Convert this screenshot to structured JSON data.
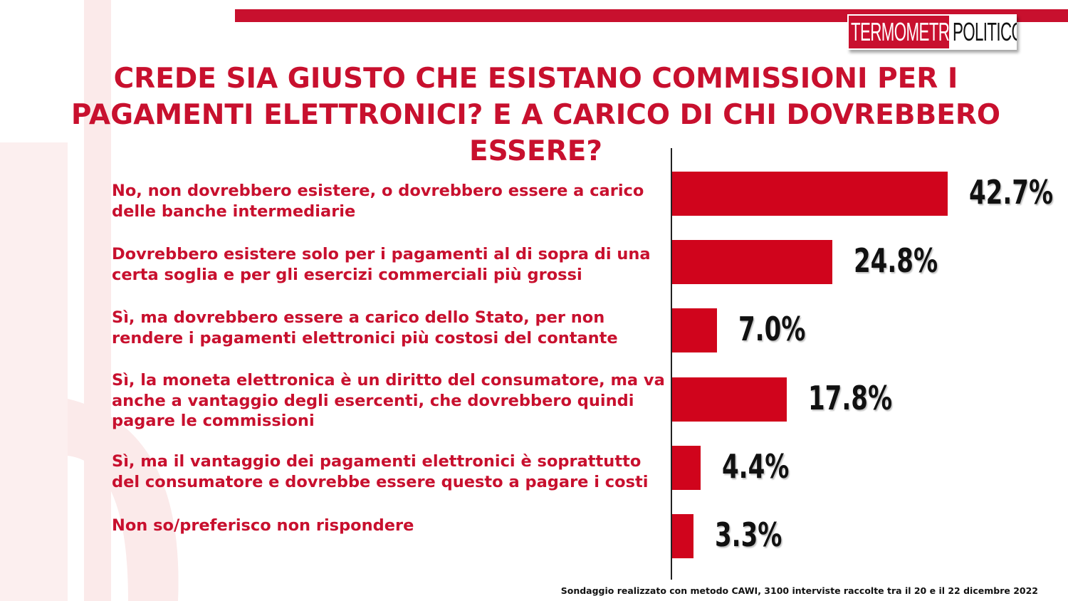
{
  "brand": {
    "logo_part_a": "TERMOMETRO",
    "logo_part_b": "POLITICO",
    "accent_color": "#c8102e",
    "bar_color": "#d0041c"
  },
  "title": "CREDE SIA GIUSTO CHE ESISTANO COMMISSIONI PER I PAGAMENTI ELETTRONICI? E A CARICO DI CHI DOVREBBERO ESSERE?",
  "footnote": "Sondaggio realizzato con metodo CAWI, 3100 interviste raccolte tra il 20 e il 22 dicembre 2022",
  "chart_data": {
    "type": "bar",
    "orientation": "horizontal",
    "title": "CREDE SIA GIUSTO CHE ESISTANO COMMISSIONI PER I PAGAMENTI ELETTRONICI? E A CARICO DI CHI DOVREBBERO ESSERE?",
    "categories": [
      "No, non dovrebbero esistere, o dovrebbero essere a carico delle banche intermediarie",
      "Dovrebbero esistere solo per i pagamenti al di sopra di una certa soglia e per gli esercizi commerciali più grossi",
      "Sì, ma dovrebbero essere a carico dello Stato, per non rendere i pagamenti elettronici più costosi del contante",
      "Sì, la moneta elettronica è un diritto del consumatore, ma va anche a vantaggio degli esercenti, che dovrebbero quindi pagare le commissioni",
      "Sì, ma il vantaggio dei pagamenti elettronici è soprattutto del consumatore e dovrebbe essere questo a pagare i costi",
      "Non so/preferisco non rispondere"
    ],
    "values": [
      42.7,
      24.8,
      7.0,
      17.8,
      4.4,
      3.3
    ],
    "value_labels": [
      "42.7%",
      "24.8%",
      "7.0%",
      "17.8%",
      "4.4%",
      "3.3%"
    ],
    "unit": "%",
    "grid": false,
    "legend": "none"
  }
}
